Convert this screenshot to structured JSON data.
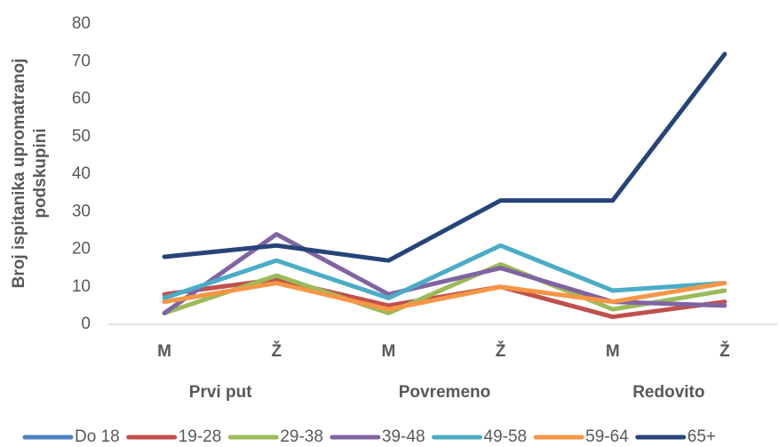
{
  "chart_data": {
    "type": "line",
    "ylabel": [
      "Broj ispitanika  upromatranoj",
      "podskupini"
    ],
    "categories": [
      "M",
      "Ž",
      "M",
      "Ž",
      "M",
      "Ž"
    ],
    "groups": [
      "Prvi put",
      "Povremeno",
      "Redovito"
    ],
    "ylim": [
      0,
      80
    ],
    "yticks": [
      0,
      10,
      20,
      30,
      40,
      50,
      60,
      70,
      80
    ],
    "grid": false,
    "legend": "bottom",
    "series": [
      {
        "name": "Do 18",
        "color": "#4f81bd",
        "values": [
          null,
          null,
          null,
          null,
          null,
          null
        ]
      },
      {
        "name": "19-28",
        "color": "#c0504d",
        "values": [
          8,
          12,
          5,
          10,
          2,
          6
        ]
      },
      {
        "name": "29-38",
        "color": "#9bbb59",
        "values": [
          3,
          13,
          3,
          16,
          4,
          9
        ]
      },
      {
        "name": "39-48",
        "color": "#8064a2",
        "values": [
          3,
          24,
          8,
          15,
          6,
          5
        ]
      },
      {
        "name": "49-58",
        "color": "#4bacc6",
        "values": [
          7,
          17,
          7,
          21,
          9,
          11
        ]
      },
      {
        "name": "59-64",
        "color": "#f79646",
        "values": [
          6,
          11,
          4,
          10,
          6,
          11
        ]
      },
      {
        "name": "65+",
        "color": "#264478",
        "values": [
          18,
          21,
          17,
          33,
          33,
          72
        ]
      }
    ]
  }
}
